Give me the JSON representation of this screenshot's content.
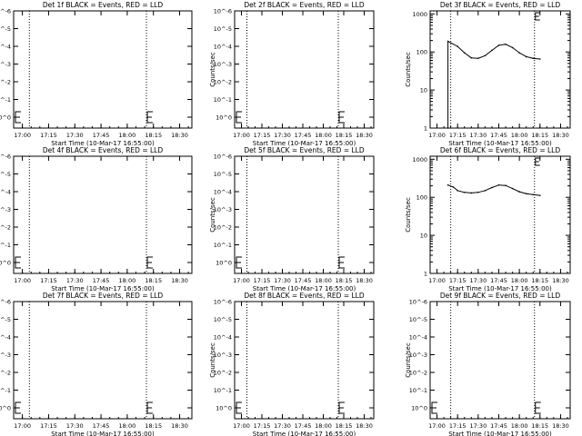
{
  "figure": {
    "background": "#ffffff",
    "line_color": "#000000"
  },
  "chart_data": [
    {
      "type": "line",
      "title": "Det 1f BLACK = Events, RED = LLD",
      "xlabel": "Start Time (10-Mar-17 16:55:00)",
      "ylabel": "Counts/sec",
      "x_ticks": [
        "17:00",
        "17:15",
        "17:30",
        "17:45",
        "18:00",
        "18:15",
        "18:30"
      ],
      "y_ticks": [
        "10^0",
        "10^-1",
        "10^-2",
        "10^-3",
        "10^-4",
        "10^-5",
        "10^-6"
      ],
      "vlines": [
        "17:04",
        "18:11"
      ],
      "series": []
    },
    {
      "type": "line",
      "title": "Det 2f BLACK = Events, RED = LLD",
      "xlabel": "Start Time (10-Mar-17 16:55:00)",
      "ylabel": "Counts/sec",
      "x_ticks": [
        "17:00",
        "17:15",
        "17:30",
        "17:45",
        "18:00",
        "18:15",
        "18:30"
      ],
      "y_ticks": [
        "10^0",
        "10^-1",
        "10^-2",
        "10^-3",
        "10^-4",
        "10^-5",
        "10^-6"
      ],
      "vlines": [
        "17:04",
        "18:11"
      ],
      "series": []
    },
    {
      "type": "line",
      "title": "Det 3f BLACK = Events, RED = LLD",
      "xlabel": "Start Time (10-Mar-17 16:55:00)",
      "ylabel": "Counts/sec",
      "x_ticks": [
        "17:00",
        "17:15",
        "17:30",
        "17:45",
        "18:00",
        "18:15",
        "18:30"
      ],
      "y_ticks": [
        "1",
        "10",
        "100",
        "1000"
      ],
      "log_y": true,
      "ylim": [
        1,
        1200
      ],
      "vlines": [
        "17:10",
        "18:11"
      ],
      "series": [
        {
          "x": [
            "17:08",
            "17:08",
            "17:15",
            "17:20",
            "17:25",
            "17:30",
            "17:35",
            "17:40",
            "17:45",
            "17:50",
            "17:55",
            "18:00",
            "18:05",
            "18:10",
            "18:15"
          ],
          "y": [
            1,
            190,
            140,
            95,
            70,
            68,
            80,
            110,
            150,
            160,
            130,
            95,
            75,
            68,
            65
          ]
        }
      ]
    },
    {
      "type": "line",
      "title": "Det 4f BLACK = Events, RED = LLD",
      "xlabel": "Start Time (10-Mar-17 16:55:00)",
      "ylabel": "Counts/sec",
      "x_ticks": [
        "17:00",
        "17:15",
        "17:30",
        "17:45",
        "18:00",
        "18:15",
        "18:30"
      ],
      "y_ticks": [
        "10^0",
        "10^-1",
        "10^-2",
        "10^-3",
        "10^-4",
        "10^-5",
        "10^-6"
      ],
      "vlines": [
        "17:04",
        "18:11"
      ],
      "series": []
    },
    {
      "type": "line",
      "title": "Det 5f BLACK = Events, RED = LLD",
      "xlabel": "Start Time (10-Mar-17 16:55:00)",
      "ylabel": "Counts/sec",
      "x_ticks": [
        "17:00",
        "17:15",
        "17:30",
        "17:45",
        "18:00",
        "18:15",
        "18:30"
      ],
      "y_ticks": [
        "10^0",
        "10^-1",
        "10^-2",
        "10^-3",
        "10^-4",
        "10^-5",
        "10^-6"
      ],
      "vlines": [
        "17:04",
        "18:11"
      ],
      "series": []
    },
    {
      "type": "line",
      "title": "Det 6f BLACK = Events, RED = LLD",
      "xlabel": "Start Time (10-Mar-17 16:55:00)",
      "ylabel": "Counts/sec",
      "x_ticks": [
        "17:00",
        "17:15",
        "17:30",
        "17:45",
        "18:00",
        "18:15",
        "18:30"
      ],
      "y_ticks": [
        "1",
        "10",
        "100",
        "1000"
      ],
      "log_y": true,
      "ylim": [
        1,
        1200
      ],
      "vlines": [
        "17:10",
        "18:11"
      ],
      "series": [
        {
          "x": [
            "17:08",
            "17:12",
            "17:15",
            "17:20",
            "17:25",
            "17:30",
            "17:35",
            "17:40",
            "17:45",
            "17:50",
            "17:55",
            "18:00",
            "18:05",
            "18:10",
            "18:15"
          ],
          "y": [
            210,
            185,
            150,
            135,
            130,
            135,
            150,
            180,
            210,
            205,
            170,
            140,
            125,
            118,
            112
          ]
        }
      ]
    },
    {
      "type": "line",
      "title": "Det 7f BLACK = Events, RED = LLD",
      "xlabel": "Start Time (10-Mar-17 16:55:00)",
      "ylabel": "Counts/sec",
      "x_ticks": [
        "17:00",
        "17:15",
        "17:30",
        "17:45",
        "18:00",
        "18:15",
        "18:30"
      ],
      "y_ticks": [
        "10^0",
        "10^-1",
        "10^-2",
        "10^-3",
        "10^-4",
        "10^-5",
        "10^-6"
      ],
      "vlines": [
        "17:04",
        "18:11"
      ],
      "series": []
    },
    {
      "type": "line",
      "title": "Det 8f BLACK = Events, RED = LLD",
      "xlabel": "Start Time (10-Mar-17 16:55:00)",
      "ylabel": "Counts/sec",
      "x_ticks": [
        "17:00",
        "17:15",
        "17:30",
        "17:45",
        "18:00",
        "18:15",
        "18:30"
      ],
      "y_ticks": [
        "10^0",
        "10^-1",
        "10^-2",
        "10^-3",
        "10^-4",
        "10^-5",
        "10^-6"
      ],
      "vlines": [
        "17:04",
        "18:11"
      ],
      "series": []
    },
    {
      "type": "line",
      "title": "Det 9f BLACK = Events, RED = LLD",
      "xlabel": "Start Time (10-Mar-17 16:55:00)",
      "ylabel": "Counts/sec",
      "x_ticks": [
        "17:00",
        "17:15",
        "17:30",
        "17:45",
        "18:00",
        "18:15",
        "18:30"
      ],
      "y_ticks": [
        "10^0",
        "10^-1",
        "10^-2",
        "10^-3",
        "10^-4",
        "10^-5",
        "10^-6"
      ],
      "vlines": [
        "17:10",
        "18:11"
      ],
      "series": []
    }
  ]
}
